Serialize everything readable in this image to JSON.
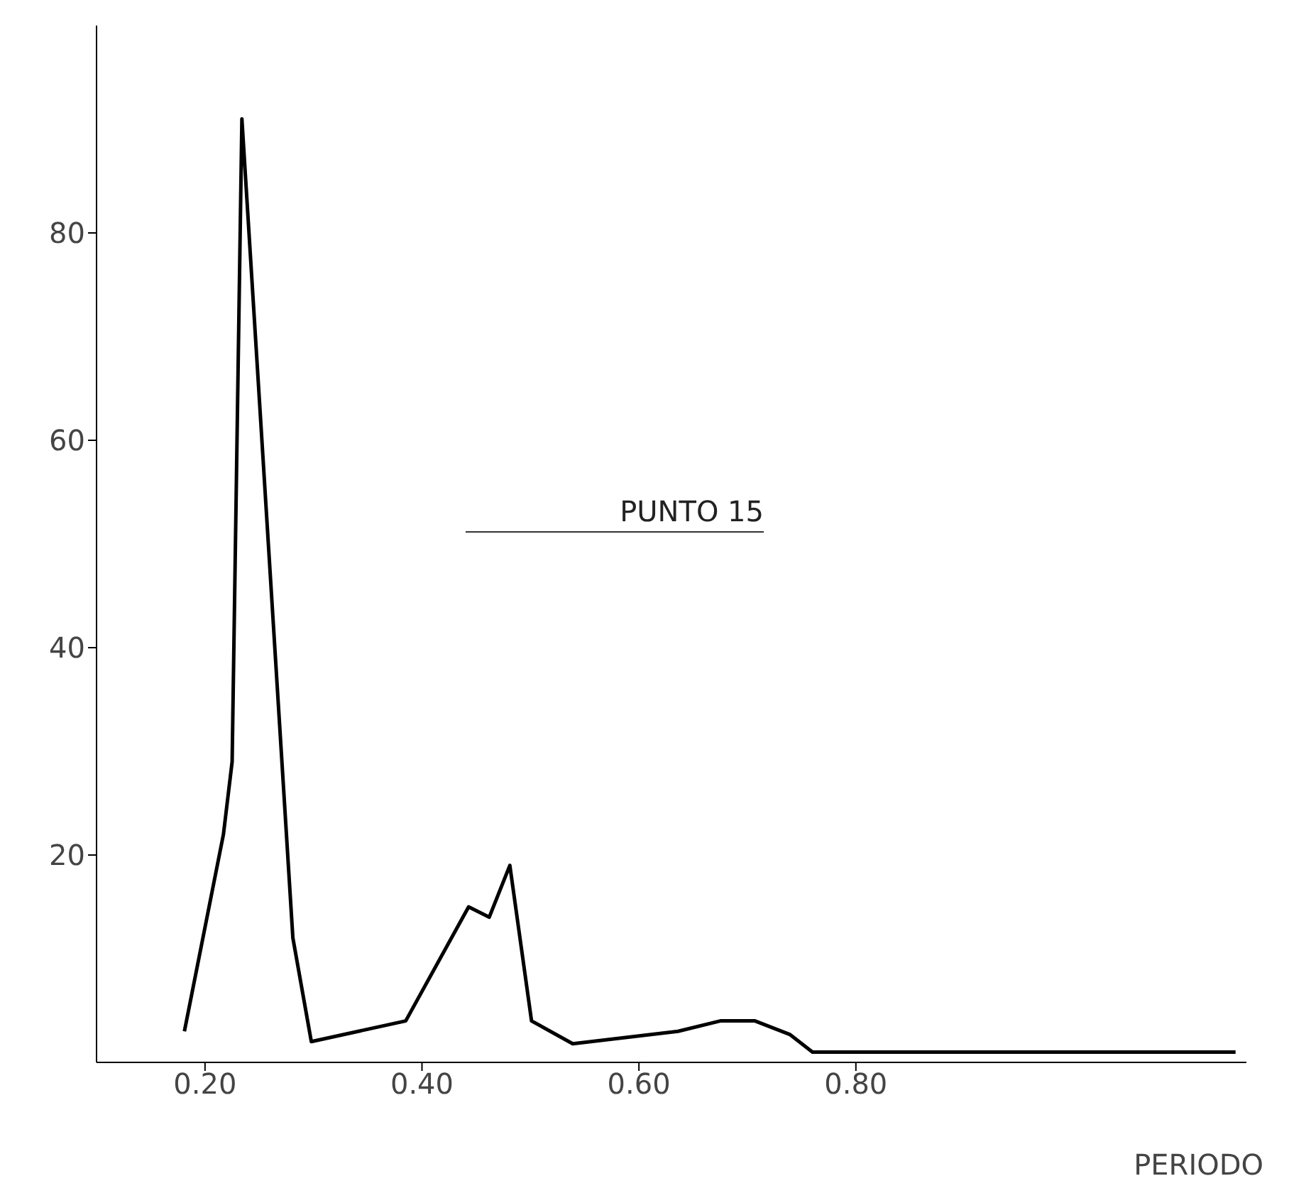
{
  "chart_data": {
    "type": "line",
    "xlabel": "PERIODO",
    "annotations": [
      "PUNTO 15"
    ],
    "x": [
      0.181,
      0.217,
      0.225,
      0.234,
      0.281,
      0.298,
      0.385,
      0.443,
      0.462,
      0.481,
      0.501,
      0.539,
      0.636,
      0.675,
      0.707,
      0.739,
      0.76,
      1.15
    ],
    "series": [
      {
        "color": "#000000",
        "values": [
          3,
          22,
          29,
          91,
          12,
          2,
          4,
          15,
          14,
          19,
          4,
          1.8,
          3,
          4,
          4,
          2.7,
          1,
          1
        ]
      }
    ],
    "xlim": [
      0.1,
      1.16
    ],
    "ylim": [
      0,
      100
    ],
    "xticks": [
      {
        "value": 0.2,
        "label": "0.20"
      },
      {
        "value": 0.4,
        "label": "0.40"
      },
      {
        "value": 0.6,
        "label": "0.60"
      },
      {
        "value": 0.8,
        "label": "0.80"
      }
    ],
    "yticks": [
      20,
      40,
      60,
      80
    ],
    "marker": "none",
    "line_style": "solid",
    "grid": false,
    "legend": false
  }
}
